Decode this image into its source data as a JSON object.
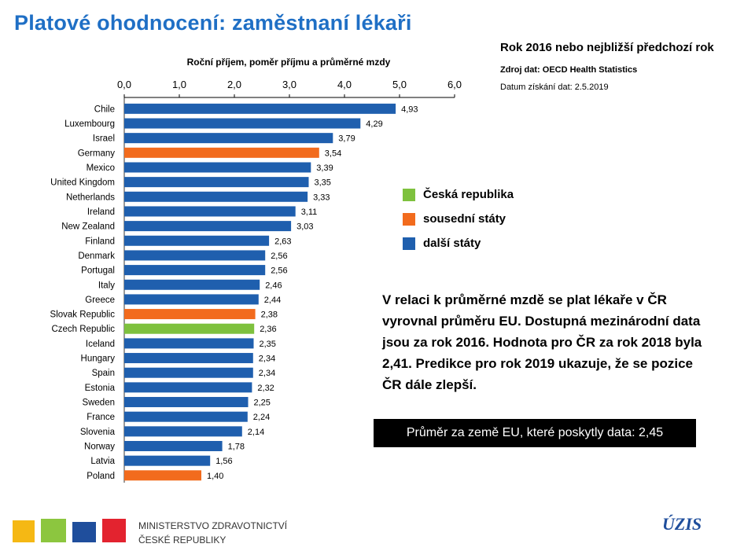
{
  "header": {
    "title": "Platové ohodnocení: zaměstnaní lékaři",
    "subtitle": "Rok 2016 nebo nejbližší předchozí rok",
    "source": "Zdroj dat: OECD Health Statistics",
    "date": "Datum získání dat: 2.5.2019"
  },
  "legend": {
    "items": [
      {
        "label": "Česká republika",
        "color": "#7ec13e"
      },
      {
        "label": "sousední státy",
        "color": "#f26b1d"
      },
      {
        "label": "další státy",
        "color": "#1f5fae"
      }
    ]
  },
  "note": {
    "lines": [
      "V relaci k průměrné mzdě se plat lékaře v ČR",
      "vyrovnal průměru EU. Dostupná mezinárodní data",
      "jsou za rok 2016. Hodnota pro ČR za rok 2018 byla",
      "2,41. Predikce pro rok 2019 ukazuje, že se pozice",
      "ČR dále zlepší."
    ]
  },
  "avg_box": "Průměr za země EU, které poskytly data: 2,45",
  "footer": {
    "ministry_line1": "MINISTERSTVO ZDRAVOTNICTVÍ",
    "ministry_line2": "ČESKÉ REPUBLIKY",
    "uzis": "ÚZIS"
  },
  "chart_data": {
    "type": "bar",
    "orientation": "horizontal",
    "xlabel": "Roční příjem, poměr příjmu a průměrné mzdy",
    "xlim": [
      0,
      6
    ],
    "xticks": [
      "0,0",
      "1,0",
      "2,0",
      "3,0",
      "4,0",
      "5,0",
      "6,0"
    ],
    "axis_position": "top",
    "grid": false,
    "legend_position": "right",
    "categories": [
      "Chile",
      "Luxembourg",
      "Israel",
      "Germany",
      "Mexico",
      "United Kingdom",
      "Netherlands",
      "Ireland",
      "New Zealand",
      "Finland",
      "Denmark",
      "Portugal",
      "Italy",
      "Greece",
      "Slovak Republic",
      "Czech Republic",
      "Iceland",
      "Hungary",
      "Spain",
      "Estonia",
      "Sweden",
      "France",
      "Slovenia",
      "Norway",
      "Latvia",
      "Poland"
    ],
    "values": [
      4.93,
      4.29,
      3.79,
      3.54,
      3.39,
      3.35,
      3.33,
      3.11,
      3.03,
      2.63,
      2.56,
      2.56,
      2.46,
      2.44,
      2.38,
      2.36,
      2.35,
      2.34,
      2.34,
      2.32,
      2.25,
      2.24,
      2.14,
      1.78,
      1.56,
      1.4
    ],
    "value_labels": [
      "4,93",
      "4,29",
      "3,79",
      "3,54",
      "3,39",
      "3,35",
      "3,33",
      "3,11",
      "3,03",
      "2,63",
      "2,56",
      "2,56",
      "2,46",
      "2,44",
      "2,38",
      "2,36",
      "2,35",
      "2,34",
      "2,34",
      "2,32",
      "2,25",
      "2,24",
      "2,14",
      "1,78",
      "1,56",
      "1,40"
    ],
    "groups": [
      "další",
      "další",
      "další",
      "soused",
      "další",
      "další",
      "další",
      "další",
      "další",
      "další",
      "další",
      "další",
      "další",
      "další",
      "soused",
      "CR",
      "další",
      "další",
      "další",
      "další",
      "další",
      "další",
      "další",
      "další",
      "další",
      "soused"
    ],
    "group_colors": {
      "CR": "#7ec13e",
      "soused": "#f26b1d",
      "další": "#1f5fae"
    }
  }
}
